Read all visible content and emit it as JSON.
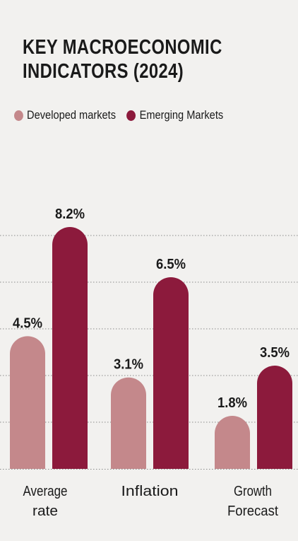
{
  "chart_data": {
    "type": "bar",
    "title_lines": [
      "KEY MACROECONOMIC",
      "INDICATORS (2024)"
    ],
    "categories": [
      [
        "Average",
        "rate"
      ],
      [
        "Inflation"
      ],
      [
        "Growth",
        "Forecast"
      ]
    ],
    "series": [
      {
        "name": "Developed markets",
        "color": "#c4888b",
        "values": [
          4.5,
          3.1,
          1.8
        ],
        "labels": [
          "4.5%",
          "3.1%",
          "1.8%"
        ]
      },
      {
        "name": "Emerging Markets",
        "color": "#8c1a3c",
        "values": [
          8.2,
          6.5,
          3.5
        ],
        "labels": [
          "8.2%",
          "6.5%",
          "3.5%"
        ]
      }
    ],
    "ylim": [
      0,
      10
    ],
    "grid": true,
    "legend_position": "top-left"
  }
}
